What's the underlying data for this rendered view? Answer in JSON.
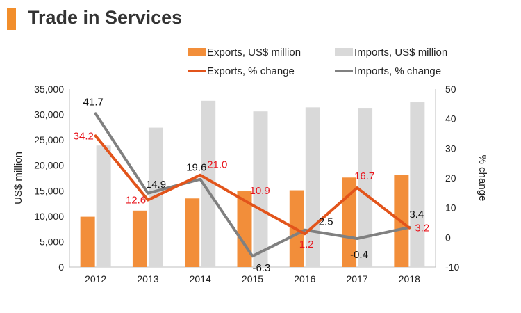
{
  "page": {
    "title": "Trade in Services"
  },
  "chart_data": {
    "type": "bar",
    "categories": [
      "2012",
      "2013",
      "2014",
      "2015",
      "2016",
      "2017",
      "2018"
    ],
    "left_axis": {
      "label": "US$ million",
      "min": 0,
      "max": 35000,
      "ticks": [
        "0",
        "5,000",
        "10,000",
        "15,000",
        "20,000",
        "25,000",
        "30,000",
        "35,000"
      ]
    },
    "right_axis": {
      "label": "% change",
      "min": -10,
      "max": 50,
      "ticks": [
        "-10",
        "0",
        "10",
        "20",
        "30",
        "40",
        "50"
      ]
    },
    "series": [
      {
        "name": "Exports, US$ million",
        "type": "bar",
        "axis": "left",
        "color": "#f28e3a",
        "values": [
          9900,
          11100,
          13500,
          14900,
          15100,
          17600,
          18100
        ]
      },
      {
        "name": "Imports, US$ million",
        "type": "bar",
        "axis": "left",
        "color": "#d9d9d9",
        "values": [
          23900,
          27400,
          32700,
          30600,
          31400,
          31300,
          32400
        ]
      },
      {
        "name": "Exports, % change",
        "type": "line",
        "axis": "right",
        "color": "#e2541b",
        "label_color": "#e8141c",
        "values": [
          34.2,
          12.6,
          21.0,
          10.9,
          1.2,
          16.7,
          3.2
        ],
        "labels": [
          "34.2",
          "12.6",
          "21.0",
          "10.9",
          "1.2",
          "16.7",
          "3.2"
        ]
      },
      {
        "name": "Imports, % change",
        "type": "line",
        "axis": "right",
        "color": "#808080",
        "label_color": "#111111",
        "values": [
          41.7,
          14.9,
          19.6,
          -6.3,
          2.5,
          -0.4,
          3.4
        ],
        "labels": [
          "41.7",
          "14.9",
          "19.6",
          "-6.3",
          "2.5",
          "-0.4",
          "3.4"
        ]
      }
    ],
    "legend_position": "top",
    "grid": false
  }
}
